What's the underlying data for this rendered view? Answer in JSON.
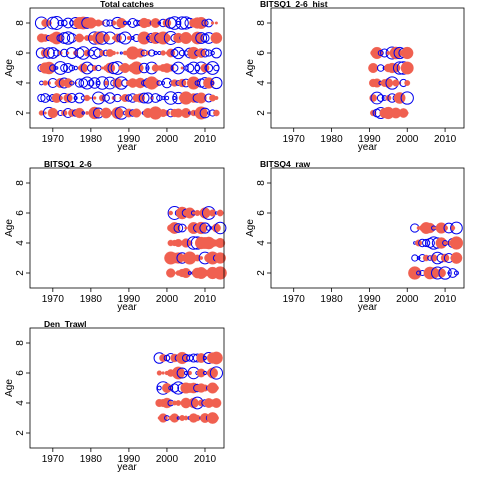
{
  "chart_data": [
    {
      "type": "bubble",
      "title": "Total catches",
      "xlabel": "year",
      "ylabel": "Age",
      "xlim": [
        1964,
        2015
      ],
      "ylim": [
        1,
        9
      ],
      "xticks": [
        1970,
        1980,
        1990,
        2000,
        2010
      ],
      "yticks": [
        2,
        4,
        6,
        8
      ],
      "x_range": [
        1967,
        2013
      ],
      "ages": [
        2,
        3,
        4,
        5,
        6,
        7,
        8
      ],
      "dominant_sign": "mixed",
      "seed": 11
    },
    {
      "type": "bubble",
      "title": "BITSQ1_2-6_hist",
      "xlabel": "year",
      "ylabel": "Age",
      "xlim": [
        1964,
        2015
      ],
      "ylim": [
        1,
        9
      ],
      "xticks": [
        1970,
        1980,
        1990,
        2000,
        2010
      ],
      "yticks": [
        2,
        4,
        6,
        8
      ],
      "x_range": [
        1991,
        2000
      ],
      "ages": [
        2,
        3,
        4,
        5,
        6
      ],
      "dominant_sign": "mixed",
      "seed": 23
    },
    {
      "type": "bubble",
      "title": "BITSQ1_2-6",
      "xlabel": "year",
      "ylabel": "Age",
      "xlim": [
        1964,
        2015
      ],
      "ylim": [
        1,
        9
      ],
      "xticks": [
        1970,
        1980,
        1990,
        2000,
        2010
      ],
      "yticks": [
        2,
        4,
        6,
        8
      ],
      "x_range": [
        2001,
        2014
      ],
      "ages": [
        2,
        3,
        4,
        5,
        6
      ],
      "dominant_sign": "mixed",
      "seed": 37
    },
    {
      "type": "bubble",
      "title": "BITSQ4_raw",
      "xlabel": "year",
      "ylabel": "Age",
      "xlim": [
        1964,
        2015
      ],
      "ylim": [
        1,
        9
      ],
      "xticks": [
        1970,
        1980,
        1990,
        2000,
        2010
      ],
      "yticks": [
        2,
        4,
        6,
        8
      ],
      "x_range": [
        2002,
        2013
      ],
      "ages": [
        2,
        3,
        4,
        5
      ],
      "dominant_sign": "mixed",
      "seed": 41
    },
    {
      "type": "bubble",
      "title": "Den_Trawl",
      "xlabel": "year",
      "ylabel": "Age",
      "xlim": [
        1964,
        2015
      ],
      "ylim": [
        1,
        9
      ],
      "xticks": [
        1970,
        1980,
        1990,
        2000,
        2010
      ],
      "yticks": [
        2,
        4,
        6,
        8
      ],
      "x_range": [
        1998,
        2013
      ],
      "ages": [
        3,
        4,
        5,
        6,
        7
      ],
      "dominant_sign": "mixed",
      "seed": 53
    }
  ],
  "colors": {
    "positive_residual": "#f06050",
    "negative_residual": "#0000ee"
  }
}
